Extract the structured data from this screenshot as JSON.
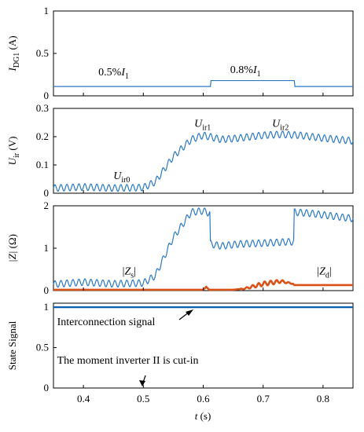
{
  "chart_data": [
    {
      "type": "line",
      "ylabel": {
        "main": "I",
        "sub": "DG1",
        "unit": " (A)"
      },
      "ylim": [
        0,
        1
      ],
      "xlim": [
        0.35,
        0.85
      ],
      "yticks": [
        "0",
        "0.5",
        "1"
      ],
      "series": [
        {
          "x": [
            0.35,
            0.612,
            0.612,
            0.752,
            0.752,
            0.85
          ],
          "y": [
            0.11,
            0.11,
            0.18,
            0.18,
            0.11,
            0.11
          ]
        }
      ],
      "annotations": [
        {
          "pre": "0.5%",
          "main": "I",
          "sub": "1",
          "x": 0.425,
          "y": 0.24
        },
        {
          "pre": "0.8%",
          "main": "I",
          "sub": "1",
          "x": 0.645,
          "y": 0.27
        }
      ]
    },
    {
      "type": "line",
      "ylabel": {
        "main": "U",
        "sub": "ir",
        "unit": " (V)"
      },
      "ylim": [
        0,
        0.3
      ],
      "xlim": [
        0.35,
        0.85
      ],
      "yticks": [
        "0",
        "0.1",
        "0.2",
        "0.3"
      ],
      "series": [
        {
          "x": [
            0.35,
            0.4,
            0.45,
            0.5,
            0.52,
            0.55,
            0.58,
            0.6,
            0.63,
            0.66,
            0.7,
            0.73,
            0.76,
            0.8,
            0.85
          ],
          "y": [
            0.018,
            0.022,
            0.018,
            0.02,
            0.04,
            0.13,
            0.19,
            0.205,
            0.19,
            0.195,
            0.205,
            0.208,
            0.205,
            0.195,
            0.185
          ],
          "ripple": 0.012
        }
      ],
      "annotations": [
        {
          "pre": "",
          "main": "U",
          "sub": "ir0",
          "x": 0.45,
          "y": 0.05
        },
        {
          "pre": "",
          "main": "U",
          "sub": "ir1",
          "x": 0.585,
          "y": 0.235
        },
        {
          "pre": "",
          "main": "U",
          "sub": "ir2",
          "x": 0.715,
          "y": 0.235
        }
      ]
    },
    {
      "type": "line",
      "ylabel": {
        "main": "|Z|",
        "sub": "",
        "unit": " (Ω)"
      },
      "ylim": [
        0,
        2
      ],
      "xlim": [
        0.35,
        0.85
      ],
      "yticks": [
        "0",
        "1",
        "2"
      ],
      "series": [
        {
          "x": [
            0.35,
            0.4,
            0.45,
            0.5,
            0.52,
            0.55,
            0.58,
            0.6,
            0.611,
            0.612,
            0.63,
            0.66,
            0.7,
            0.74,
            0.751,
            0.752,
            0.78,
            0.82,
            0.85
          ],
          "y": [
            0.15,
            0.2,
            0.16,
            0.18,
            0.35,
            1.25,
            1.85,
            1.88,
            1.82,
            1.1,
            1.05,
            1.1,
            1.12,
            1.15,
            1.15,
            1.85,
            1.82,
            1.75,
            1.7
          ],
          "ripple": 0.08
        },
        {
          "x": [
            0.35,
            0.6,
            0.605,
            0.61,
            0.615,
            0.65,
            0.67,
            0.7,
            0.73,
            0.75,
            0.752,
            0.85
          ],
          "y": [
            0.02,
            0.02,
            0.09,
            0.02,
            0.02,
            0.02,
            0.05,
            0.16,
            0.22,
            0.16,
            0.13,
            0.13
          ],
          "ripple": 0.05,
          "color": "#d95319"
        }
      ],
      "annotations": [
        {
          "pre": "|",
          "main": "Z",
          "sub": "s",
          "post": "|",
          "x": 0.465,
          "y": 0.38
        },
        {
          "pre": "|",
          "main": "Z",
          "sub": "d",
          "post": "|",
          "x": 0.79,
          "y": 0.38
        }
      ]
    },
    {
      "type": "line",
      "ylabel": {
        "main": "State Signal",
        "sub": "",
        "unit": ""
      },
      "ylim": [
        0,
        1.05
      ],
      "xlim": [
        0.35,
        0.85
      ],
      "yticks": [
        "0",
        "0.5",
        "1"
      ],
      "xticks": [
        "0.4",
        "0.5",
        "0.6",
        "0.7",
        "0.8"
      ],
      "xlabel": {
        "main": "t",
        "unit": " (s)"
      },
      "series": [
        {
          "x": [
            0.35,
            0.85
          ],
          "y": [
            1.0,
            1.0
          ],
          "color": "#0b5fb3"
        }
      ],
      "annotations": [
        {
          "text": "Interconnection signal",
          "x": 0.356,
          "y": 0.78
        },
        {
          "text": "The moment inverter II is cut-in",
          "x": 0.356,
          "y": 0.3
        }
      ]
    }
  ]
}
